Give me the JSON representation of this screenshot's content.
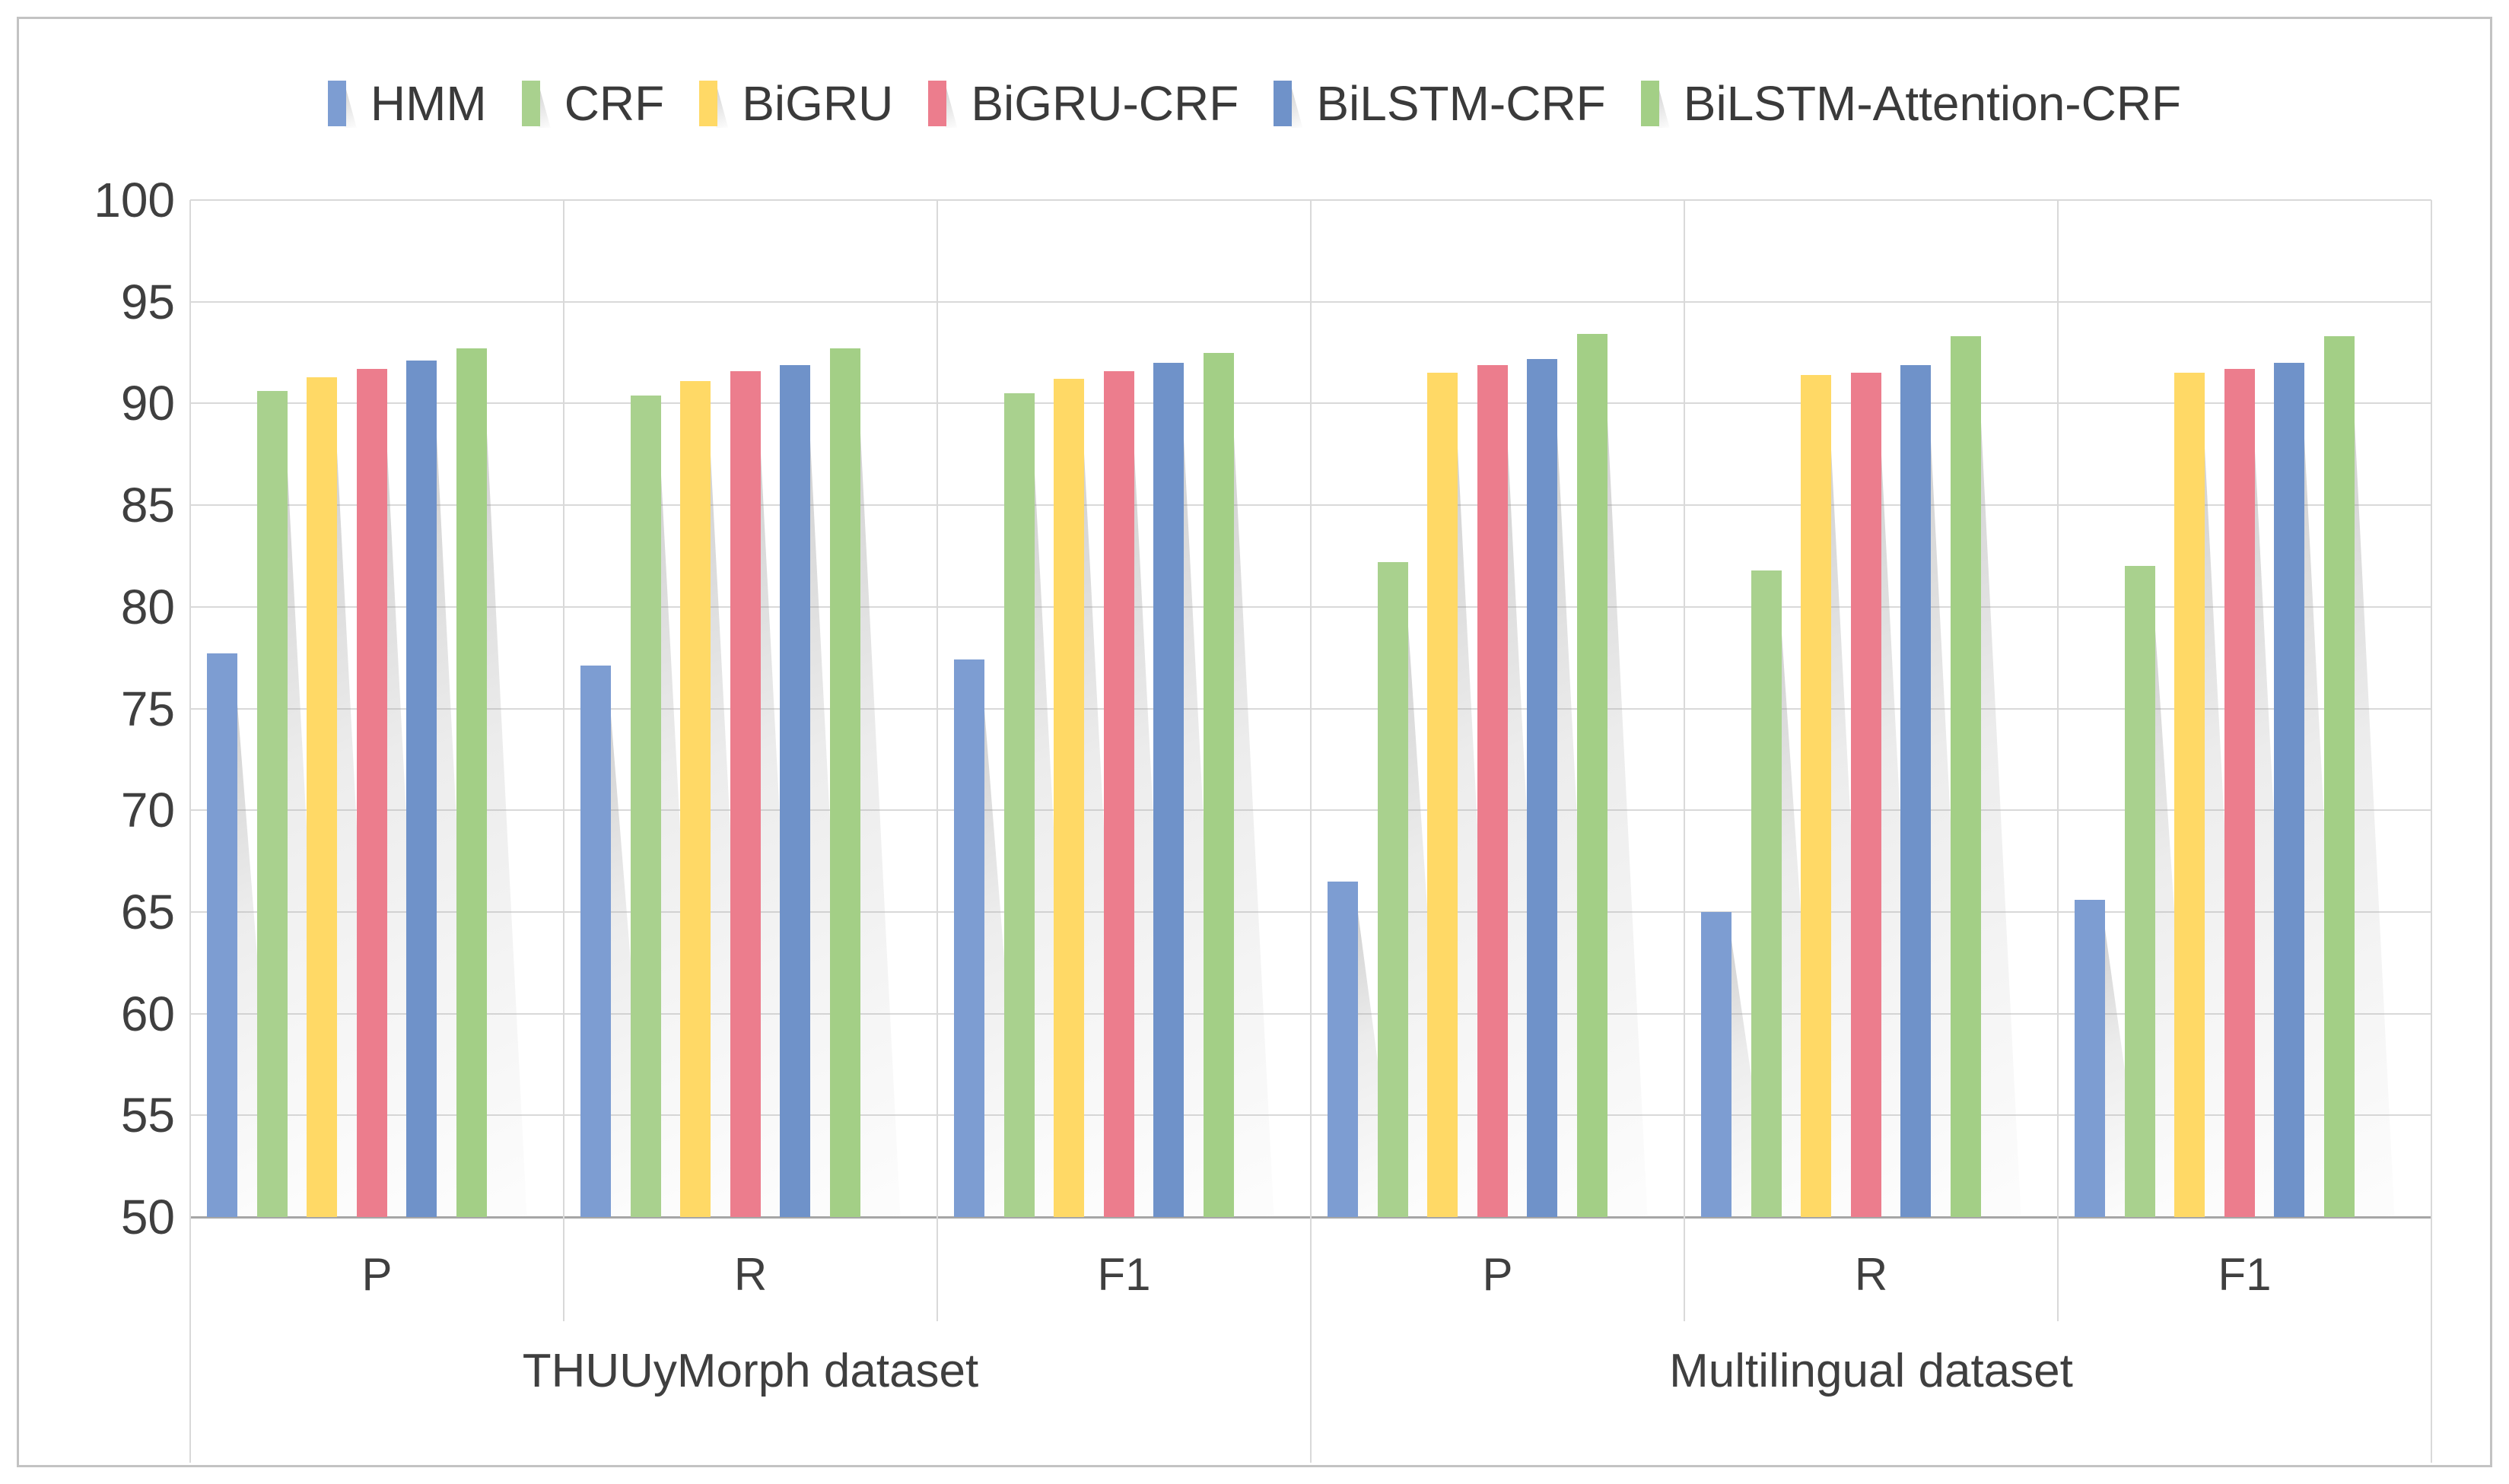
{
  "chart_data": {
    "type": "bar",
    "title": "",
    "xlabel": "",
    "ylabel": "",
    "ylim": [
      50,
      100
    ],
    "grid": true,
    "legend_position": "top",
    "y_ticks": [
      100,
      95,
      90,
      85,
      80,
      75,
      70,
      65,
      60,
      55,
      50
    ],
    "group_labels": [
      "P",
      "R",
      "F1",
      "P",
      "R",
      "F1"
    ],
    "dataset_labels": [
      "THUUyMorph dataset",
      "Multilingual dataset"
    ],
    "series": [
      {
        "name": "HMM",
        "color": "#7d9dd2",
        "values": [
          77.7,
          77.1,
          77.4,
          66.5,
          65.0,
          65.6
        ]
      },
      {
        "name": "CRF",
        "color": "#a9d18e",
        "values": [
          90.6,
          90.4,
          90.5,
          82.2,
          81.8,
          82.0
        ]
      },
      {
        "name": "BiGRU",
        "color": "#ffd966",
        "values": [
          91.3,
          91.1,
          91.2,
          91.5,
          91.4,
          91.5
        ]
      },
      {
        "name": "BiGRU-CRF",
        "color": "#ec7d8d",
        "values": [
          91.7,
          91.6,
          91.6,
          91.9,
          91.5,
          91.7
        ]
      },
      {
        "name": "BiLSTM-CRF",
        "color": "#6f92c9",
        "values": [
          92.1,
          91.9,
          92.0,
          92.2,
          91.9,
          92.0
        ]
      },
      {
        "name": "BiLSTM-Attention-CRF",
        "color": "#a3cf86",
        "values": [
          92.7,
          92.7,
          92.5,
          93.4,
          93.3,
          93.3
        ]
      }
    ],
    "colors": {
      "gridline": "#d9d9d9",
      "axis_line": "#a6a6a6",
      "frame": "#c3c3c3",
      "text": "#3f3f3f"
    }
  }
}
